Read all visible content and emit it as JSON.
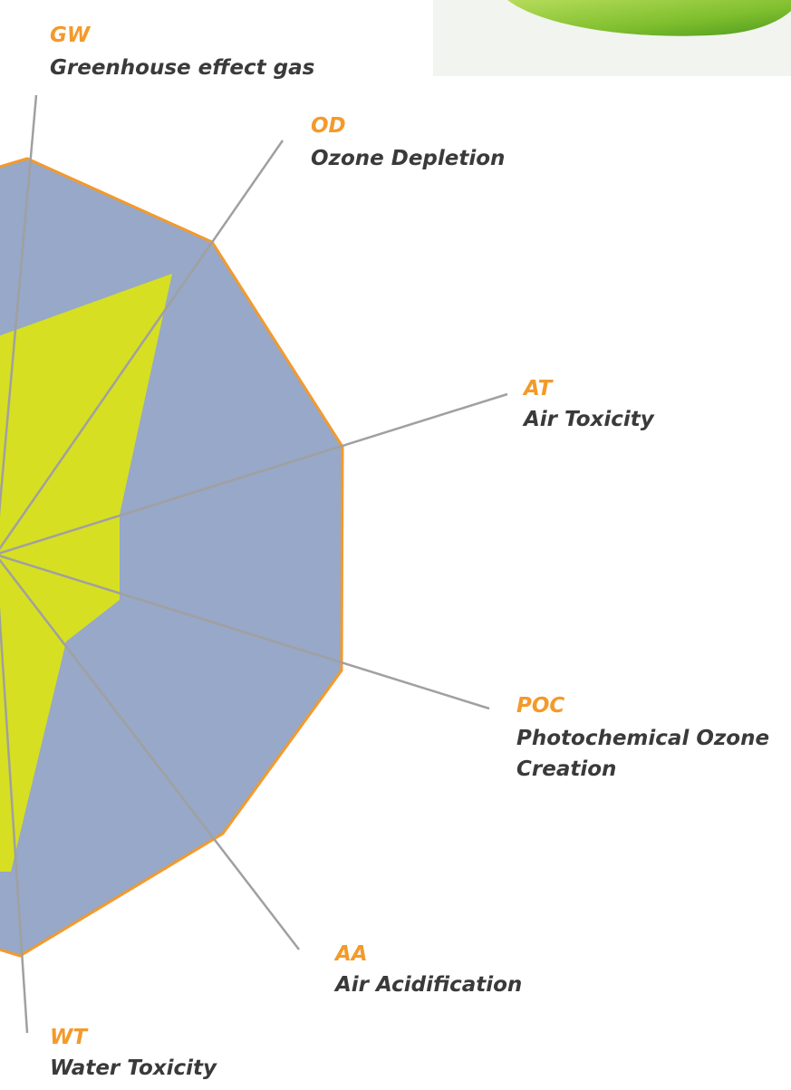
{
  "axes": [
    {
      "abbr": "GW",
      "name_lines": [
        "Greenhouse effect gas"
      ]
    },
    {
      "abbr": "OD",
      "name_lines": [
        "Ozone Depletion"
      ]
    },
    {
      "abbr": "AT",
      "name_lines": [
        "Air Toxicity"
      ]
    },
    {
      "abbr": "POC",
      "name_lines": [
        "Photochemical Ozone",
        "Creation"
      ]
    },
    {
      "abbr": "AA",
      "name_lines": [
        "Air Acidification"
      ]
    },
    {
      "abbr": "WT",
      "name_lines": [
        "Water Toxicity"
      ]
    }
  ]
}
